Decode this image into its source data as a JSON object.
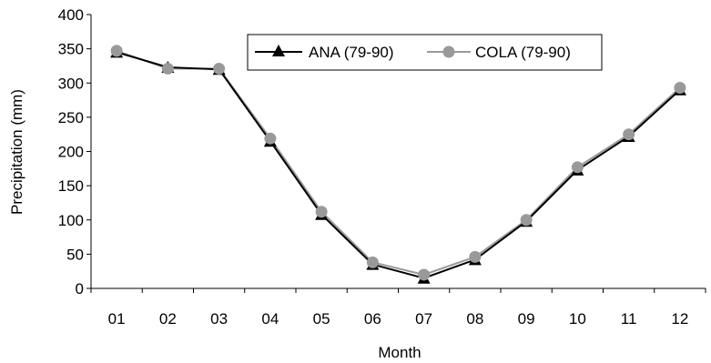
{
  "chart_data": {
    "type": "line",
    "title": "",
    "xlabel": "Month",
    "ylabel": "Precipitation (mm)",
    "categories": [
      "01",
      "02",
      "03",
      "04",
      "05",
      "06",
      "07",
      "08",
      "09",
      "10",
      "11",
      "12"
    ],
    "ylim": [
      0,
      400
    ],
    "yticks": [
      0,
      50,
      100,
      150,
      200,
      250,
      300,
      350,
      400
    ],
    "grid": false,
    "legend_position": "top-right",
    "series": [
      {
        "name": "ANA (79-90)",
        "marker": "triangle",
        "color": "#000000",
        "values": [
          345,
          323,
          320,
          215,
          108,
          35,
          15,
          42,
          98,
          173,
          222,
          290
        ]
      },
      {
        "name": "COLA (79-90)",
        "marker": "circle",
        "color": "#999999",
        "values": [
          347,
          321,
          321,
          219,
          112,
          38,
          20,
          46,
          100,
          177,
          225,
          293
        ]
      }
    ]
  }
}
